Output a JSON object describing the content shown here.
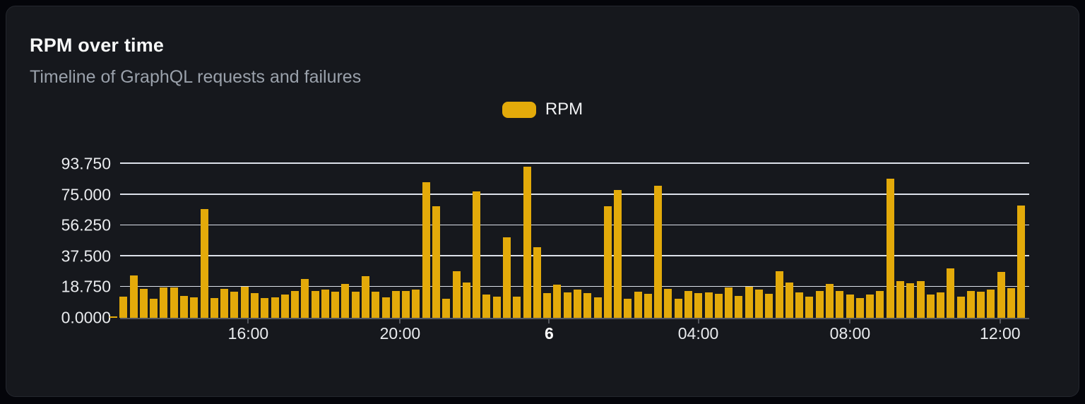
{
  "card": {
    "title": "RPM over time",
    "subtitle": "Timeline of GraphQL requests and failures"
  },
  "legend": {
    "label": "RPM",
    "position": "top-center"
  },
  "colors": {
    "background": "#04050a",
    "card_bg": "#16181d",
    "card_border": "#24272e",
    "bar": "#e3aa0a",
    "gridline": "#dde1ea",
    "axis_line": "#54575e",
    "title_text": "#f7f8f8",
    "subtitle_text": "#9aa1ab",
    "tick_text": "#e9ebee"
  },
  "chart_data": {
    "type": "bar",
    "title": "RPM over time",
    "subtitle": "Timeline of GraphQL requests and failures",
    "series_name": "RPM",
    "xlabel": "",
    "ylabel": "",
    "grid": "horizontal",
    "legend_position": "top-center",
    "y_axis_max": 96.7,
    "y_ticks": [
      {
        "label": "0.0000",
        "value": 0
      },
      {
        "label": "18.750",
        "value": 18.75
      },
      {
        "label": "37.500",
        "value": 37.5
      },
      {
        "label": "56.250",
        "value": 56.25
      },
      {
        "label": "75.000",
        "value": 75
      },
      {
        "label": "93.750",
        "value": 93.75
      }
    ],
    "x_ticks": [
      {
        "label": "16:00",
        "pos_pct": 14.1,
        "bold": false
      },
      {
        "label": "20:00",
        "pos_pct": 30.8,
        "bold": false
      },
      {
        "label": "6",
        "pos_pct": 47.2,
        "bold": true
      },
      {
        "label": "04:00",
        "pos_pct": 63.6,
        "bold": false
      },
      {
        "label": "08:00",
        "pos_pct": 80.3,
        "bold": false
      },
      {
        "label": "12:00",
        "pos_pct": 96.8,
        "bold": false
      }
    ],
    "values": [
      1,
      13,
      26,
      17.5,
      11.5,
      18.5,
      18.5,
      13.5,
      12.5,
      66,
      12,
      17.5,
      16,
      19,
      15,
      12,
      12.5,
      14,
      16.5,
      23.5,
      16.5,
      17,
      16,
      20.5,
      16,
      25.5,
      16,
      12.5,
      16.5,
      16.5,
      17,
      82.5,
      68,
      11.5,
      28.5,
      21.5,
      77,
      14,
      13,
      49,
      13,
      92,
      43,
      15,
      20,
      15.5,
      17,
      15,
      12.5,
      68,
      78,
      11.5,
      16,
      14.5,
      80.5,
      17.5,
      11.5,
      16.5,
      15,
      15.5,
      14.5,
      18.5,
      13.5,
      19,
      17,
      14.5,
      28.5,
      21.5,
      15.5,
      13,
      16.5,
      20.5,
      16.5,
      14,
      12,
      14,
      16.5,
      84.5,
      22.5,
      21,
      22.5,
      14,
      15.5,
      30,
      13,
      16.5,
      16,
      17,
      28,
      18,
      68.5
    ]
  }
}
